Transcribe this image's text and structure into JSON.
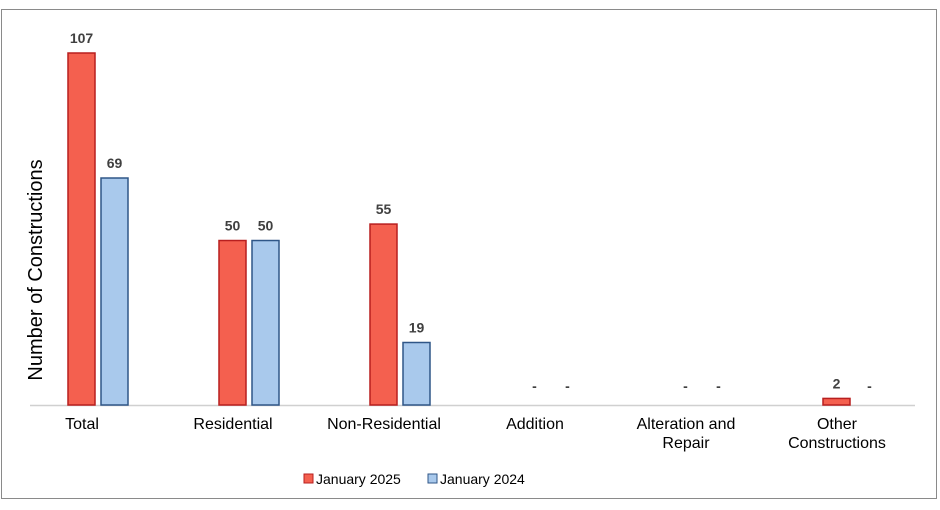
{
  "chart_data": {
    "type": "bar",
    "title": "",
    "xlabel": "",
    "ylabel": "Number of Constructions",
    "ylim": [
      0,
      110
    ],
    "grid": false,
    "legend_position": "bottom",
    "categories": [
      [
        "Total"
      ],
      [
        "Residential"
      ],
      [
        "Non-Residential"
      ],
      [
        "Addition"
      ],
      [
        "Alteration and",
        "Repair"
      ],
      [
        "Other",
        "Constructions"
      ]
    ],
    "series": [
      {
        "name": "January 2025",
        "color": "#f4604f",
        "border": "#b81f1f",
        "values": [
          107,
          50,
          55,
          null,
          null,
          2
        ],
        "labels": [
          "107",
          "50",
          "55",
          "-",
          "-",
          "2"
        ]
      },
      {
        "name": "January 2024",
        "color": "#a9c9ec",
        "border": "#2f5687",
        "values": [
          69,
          50,
          19,
          null,
          null,
          null
        ],
        "labels": [
          "69",
          "50",
          "19",
          "-",
          "-",
          "-"
        ]
      }
    ]
  }
}
